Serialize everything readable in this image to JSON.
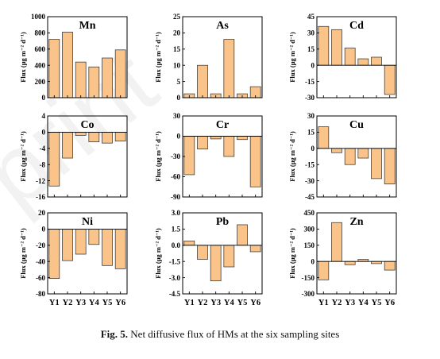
{
  "caption": {
    "label": "Fig. 5.",
    "text": "Net diffusive flux of HMs at the six sampling sites"
  },
  "colors": {
    "bar_fill": "#f9c38a",
    "bar_stroke": "#2b2b2b",
    "axis": "#000000"
  },
  "chart_data": [
    {
      "type": "bar",
      "title": "Mn",
      "ylabel": "Flux (μg m⁻² d⁻¹)",
      "categories": [
        "Y1",
        "Y2",
        "Y3",
        "Y4",
        "Y5",
        "Y6"
      ],
      "values": [
        720,
        810,
        440,
        380,
        490,
        590
      ],
      "ylim": [
        0,
        1000
      ],
      "yticks": [
        0,
        200,
        400,
        600,
        800,
        1000
      ],
      "ytick_labels": [
        "0",
        "200",
        "400",
        "600",
        "800",
        "1000"
      ]
    },
    {
      "type": "bar",
      "title": "As",
      "ylabel": "Flux (μg m⁻² d⁻¹)",
      "categories": [
        "Y1",
        "Y2",
        "Y3",
        "Y4",
        "Y5",
        "Y6"
      ],
      "values": [
        1.2,
        10,
        1.2,
        18,
        1.2,
        3.4
      ],
      "ylim": [
        0,
        25
      ],
      "yticks": [
        0,
        5,
        10,
        15,
        20,
        25
      ],
      "ytick_labels": [
        "0",
        "5",
        "10",
        "15",
        "20",
        "25"
      ]
    },
    {
      "type": "bar",
      "title": "Cd",
      "ylabel": "Flux (μg m⁻² d⁻¹)",
      "categories": [
        "Y1",
        "Y2",
        "Y3",
        "Y4",
        "Y5",
        "Y6"
      ],
      "values": [
        36,
        33,
        16,
        6,
        7.5,
        -27
      ],
      "ylim": [
        -30,
        45
      ],
      "yticks": [
        -30,
        -15,
        0,
        15,
        30,
        45
      ],
      "ytick_labels": [
        "-30",
        "-15",
        "0",
        "15",
        "30",
        "45"
      ]
    },
    {
      "type": "bar",
      "title": "Co",
      "ylabel": "Flux (μg m⁻² d⁻¹)",
      "categories": [
        "Y1",
        "Y2",
        "Y3",
        "Y4",
        "Y5",
        "Y6"
      ],
      "values": [
        -13.3,
        -6.4,
        -0.8,
        -2.4,
        -2.7,
        -2.2
      ],
      "ylim": [
        -16,
        4
      ],
      "yticks": [
        -16,
        -12,
        -8,
        -4,
        0,
        4
      ],
      "ytick_labels": [
        "-16",
        "-12",
        "-8",
        "-4",
        "0",
        "4"
      ]
    },
    {
      "type": "bar",
      "title": "Cr",
      "ylabel": "Flux (μg m⁻² d⁻¹)",
      "categories": [
        "Y1",
        "Y2",
        "Y3",
        "Y4",
        "Y5",
        "Y6"
      ],
      "values": [
        -57,
        -19,
        -4,
        -30,
        -5,
        -75
      ],
      "ylim": [
        -90,
        30
      ],
      "yticks": [
        -90,
        -60,
        -30,
        0,
        30
      ],
      "ytick_labels": [
        "-90",
        "-60",
        "-30",
        "0",
        "30"
      ]
    },
    {
      "type": "bar",
      "title": "Cu",
      "ylabel": "Flux (μg m⁻² d⁻¹)",
      "categories": [
        "Y1",
        "Y2",
        "Y3",
        "Y4",
        "Y5",
        "Y6"
      ],
      "values": [
        20,
        -4,
        -15,
        -9,
        -28,
        -33
      ],
      "ylim": [
        -45,
        30
      ],
      "yticks": [
        -45,
        -30,
        -15,
        0,
        15,
        30
      ],
      "ytick_labels": [
        "-45",
        "-30",
        "-15",
        "0",
        "15",
        "30"
      ]
    },
    {
      "type": "bar",
      "title": "Ni",
      "ylabel": "Flux (μg m⁻² d⁻¹)",
      "categories": [
        "Y1",
        "Y2",
        "Y3",
        "Y4",
        "Y5",
        "Y6"
      ],
      "values": [
        -61,
        -39,
        -31,
        -19,
        -45,
        -49
      ],
      "ylim": [
        -80,
        20
      ],
      "yticks": [
        -80,
        -60,
        -40,
        -20,
        0,
        20
      ],
      "ytick_labels": [
        "-80",
        "-60",
        "-40",
        "-20",
        "0",
        "20"
      ]
    },
    {
      "type": "bar",
      "title": "Pb",
      "ylabel": "Flux (μg m⁻² d⁻¹)",
      "categories": [
        "Y1",
        "Y2",
        "Y3",
        "Y4",
        "Y5",
        "Y6"
      ],
      "values": [
        0.4,
        -1.3,
        -3.3,
        -2.0,
        1.9,
        -0.6
      ],
      "ylim": [
        -4.5,
        3.0
      ],
      "yticks": [
        -4.5,
        -3.0,
        -1.5,
        0,
        1.5,
        3.0
      ],
      "ytick_labels": [
        "-4.5",
        "-3.0",
        "-1.5",
        "0.0",
        "1.5",
        "3.0"
      ]
    },
    {
      "type": "bar",
      "title": "Zn",
      "ylabel": "Flux (μg m⁻² d⁻¹)",
      "categories": [
        "Y1",
        "Y2",
        "Y3",
        "Y4",
        "Y5",
        "Y6"
      ],
      "values": [
        -170,
        360,
        -30,
        20,
        -20,
        -80
      ],
      "ylim": [
        -300,
        450
      ],
      "yticks": [
        -300,
        -150,
        0,
        150,
        300,
        450
      ],
      "ytick_labels": [
        "-300",
        "-150",
        "0",
        "150",
        "300",
        "450"
      ]
    }
  ]
}
